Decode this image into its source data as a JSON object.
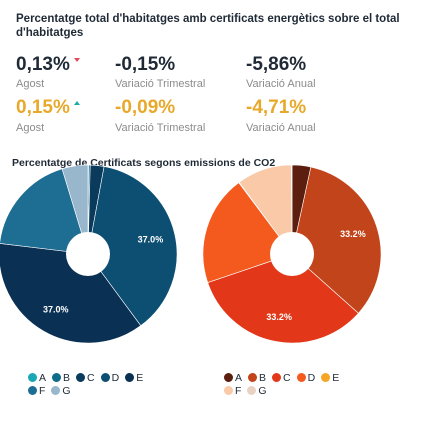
{
  "header": {
    "title": "Percentatge total d'habitatges amb certificats energètics sobre el total d'habitatges"
  },
  "stats": {
    "row1": {
      "main_value": "0,13%",
      "main_label": "Agost",
      "quarterly_value": "-0,15%",
      "quarterly_label": "Variació Trimestral",
      "annual_value": "-5,86%",
      "annual_label": "Variació Anual"
    },
    "row2": {
      "main_value": "0,15%",
      "main_label": "Agost",
      "quarterly_value": "-0,09%",
      "quarterly_label": "Variació Trimestral",
      "annual_value": "-4,71%",
      "annual_label": "Variació Anual"
    }
  },
  "charts_title": "Percentatge de Certificats segons emissions de CO2",
  "chart_data": [
    {
      "type": "pie",
      "categories": [
        "A",
        "B",
        "C",
        "D",
        "E",
        "F",
        "G"
      ],
      "values": [
        0.1,
        0.3,
        2.5,
        37.0,
        37.0,
        18.4,
        4.7
      ],
      "labels": [
        "",
        "",
        "",
        "37.0%",
        "37.0%",
        "",
        ""
      ],
      "colors": [
        "#1aa8b4",
        "#0f6b8a",
        "#0a3a5c",
        "#0d4f73",
        "#0a3154",
        "#1e6d93",
        "#98b7cc"
      ],
      "legend_position": "bottom"
    },
    {
      "type": "pie",
      "categories": [
        "A",
        "B",
        "C",
        "D",
        "E",
        "F",
        "G"
      ],
      "values": [
        3.4,
        33.2,
        33.2,
        20.0,
        0.1,
        10.0,
        0.1
      ],
      "labels": [
        "",
        "33.2%",
        "33.2%",
        "",
        "",
        "",
        ""
      ],
      "colors": [
        "#5c1e0f",
        "#c2441b",
        "#e23819",
        "#f45a1e",
        "#f5a624",
        "#f9c9a8",
        "#ead2c3"
      ],
      "legend_position": "bottom"
    }
  ]
}
